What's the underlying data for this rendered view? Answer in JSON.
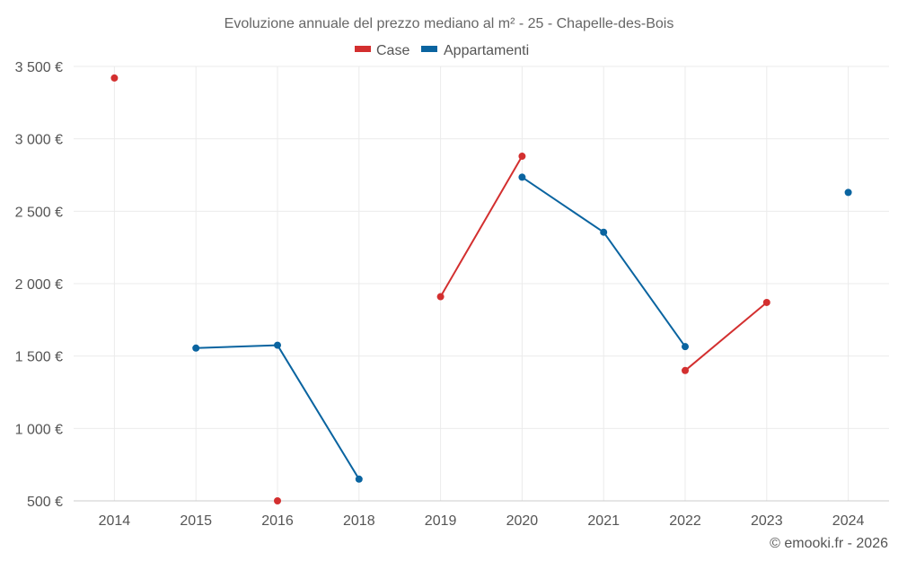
{
  "chart_data": {
    "type": "line",
    "title": "Evoluzione annuale del prezzo mediano al m² - 25 - Chapelle-des-Bois",
    "categories": [
      "2014",
      "2015",
      "2016",
      "2018",
      "2019",
      "2020",
      "2021",
      "2022",
      "2023",
      "2024"
    ],
    "y_ticks": [
      500,
      1000,
      1500,
      2000,
      2500,
      3000,
      3500
    ],
    "y_tick_labels": [
      "500 €",
      "1 000 €",
      "1 500 €",
      "2 000 €",
      "2 500 €",
      "3 000 €",
      "3 500 €"
    ],
    "ylim": [
      500,
      3500
    ],
    "grid": true,
    "legend_position": "top-center",
    "series": [
      {
        "name": "Case",
        "color": "#d32f2f",
        "values": [
          3420,
          null,
          500,
          null,
          1910,
          2880,
          null,
          1400,
          1870,
          null
        ]
      },
      {
        "name": "Appartamenti",
        "color": "#0a64a0",
        "values": [
          null,
          1555,
          1575,
          650,
          null,
          2735,
          2355,
          1565,
          null,
          2630
        ]
      }
    ],
    "credit": "© emooki.fr - 2026"
  }
}
